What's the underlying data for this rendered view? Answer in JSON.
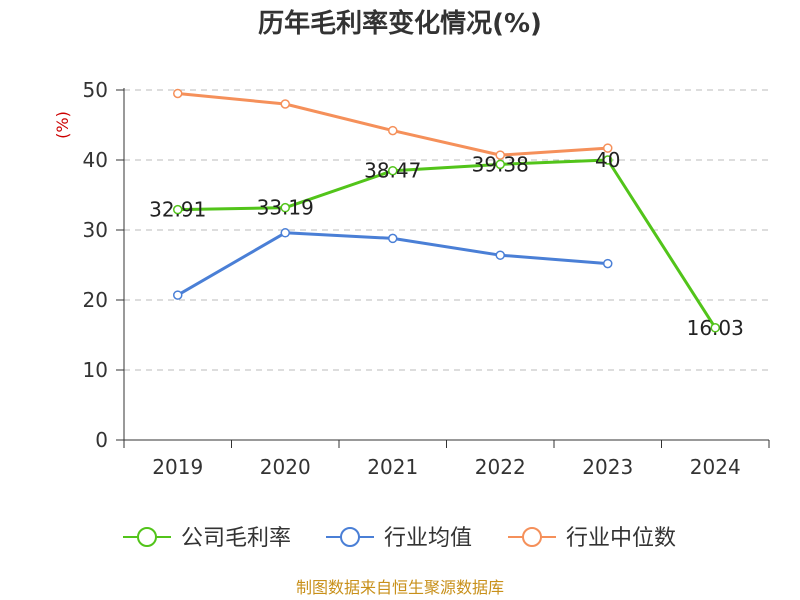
{
  "chart_data": {
    "type": "line",
    "title": "历年毛利率变化情况(%)",
    "ylabel": "(%)",
    "xlabel": "",
    "categories": [
      "2019",
      "2020",
      "2021",
      "2022",
      "2023",
      "2024"
    ],
    "ylim": [
      0,
      50
    ],
    "yticks": [
      0,
      10,
      20,
      30,
      40,
      50
    ],
    "grid": true,
    "legend_position": "bottom",
    "series": [
      {
        "name": "公司毛利率",
        "color": "#52c41a",
        "values": [
          32.91,
          33.19,
          38.47,
          39.38,
          40,
          16.03
        ],
        "labels": [
          "32.91",
          "33.19",
          "38.47",
          "39.38",
          "40",
          "16.03"
        ]
      },
      {
        "name": "行业均值",
        "color": "#4a7fd6",
        "values": [
          20.7,
          29.6,
          28.8,
          26.4,
          25.2,
          null
        ]
      },
      {
        "name": "行业中位数",
        "color": "#f5905a",
        "values": [
          49.5,
          48.0,
          44.2,
          40.7,
          41.7,
          null
        ]
      }
    ]
  },
  "source": "制图数据来自恒生聚源数据库"
}
